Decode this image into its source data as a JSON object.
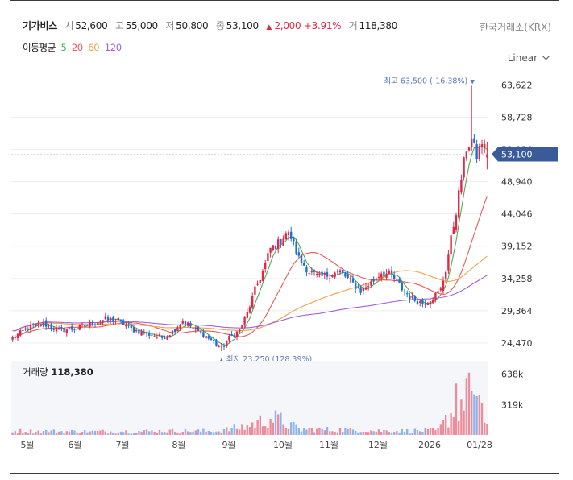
{
  "header": {
    "name": "기가비스",
    "open_label": "시",
    "open": "52,600",
    "high_label": "고",
    "high": "55,000",
    "low_label": "저",
    "low": "50,800",
    "close_label": "종",
    "close": "53,100",
    "change_arrow": "▲",
    "change": "2,000",
    "change_pct": "+3.91%",
    "volume_label": "거",
    "volume": "118,380"
  },
  "exchange": "한국거래소(KRX)",
  "ma_legend": {
    "title": "이동평균",
    "items": [
      {
        "label": "5",
        "color": "#4caf50"
      },
      {
        "label": "20",
        "color": "#e8595a"
      },
      {
        "label": "60",
        "color": "#f0a046"
      },
      {
        "label": "120",
        "color": "#a65ed6"
      }
    ]
  },
  "scale_button": "Linear",
  "colors": {
    "up": "#e0294a",
    "down": "#1e6fd9",
    "price_tag": "#3b5a9a",
    "annotation": "#5a7ab8"
  },
  "chart_data": {
    "type": "candlestick",
    "price_axis": {
      "ticks": [
        24470,
        29364,
        34258,
        39152,
        44046,
        48940,
        53834,
        58728,
        63622
      ],
      "labels": [
        "24,470",
        "29,364",
        "34,258",
        "39,152",
        "44,046",
        "48,940",
        "53,834",
        "58,728",
        "63,622"
      ],
      "ylim": [
        23000,
        65500
      ]
    },
    "time_axis": {
      "labels": [
        "5월",
        "6월",
        "7월",
        "8월",
        "9월",
        "10월",
        "11월",
        "12월",
        "2026",
        "01/28"
      ]
    },
    "current_price_tag": "53,100",
    "annotations": {
      "high": {
        "label": "최고 63,500 (-16.38%)",
        "value": 63500,
        "marker": "▼"
      },
      "low": {
        "label": "최저 23,250 (128.39%)",
        "value": 23250,
        "marker": "▲"
      }
    },
    "volume": {
      "title": "거래량",
      "value": "118,380",
      "ticks": [
        319000,
        638000
      ],
      "tick_labels": [
        "319k",
        "638k"
      ],
      "ylim": [
        0,
        780000
      ]
    },
    "price_knots": [
      [
        0,
        25200
      ],
      [
        6,
        26800
      ],
      [
        12,
        27400
      ],
      [
        18,
        26400
      ],
      [
        24,
        26700
      ],
      [
        30,
        27300
      ],
      [
        36,
        28100
      ],
      [
        41,
        27900
      ],
      [
        46,
        26600
      ],
      [
        52,
        25900
      ],
      [
        58,
        25300
      ],
      [
        62,
        26200
      ],
      [
        66,
        27900
      ],
      [
        70,
        26700
      ],
      [
        74,
        25800
      ],
      [
        78,
        24600
      ],
      [
        81,
        23700
      ],
      [
        84,
        25200
      ],
      [
        88,
        26400
      ],
      [
        91,
        29000
      ],
      [
        94,
        32500
      ],
      [
        97,
        35300
      ],
      [
        100,
        38800
      ],
      [
        103,
        39600
      ],
      [
        106,
        41200
      ],
      [
        108,
        40500
      ],
      [
        111,
        37300
      ],
      [
        115,
        35300
      ],
      [
        119,
        34400
      ],
      [
        123,
        34900
      ],
      [
        127,
        35300
      ],
      [
        131,
        33800
      ],
      [
        135,
        32400
      ],
      [
        139,
        33600
      ],
      [
        143,
        35200
      ],
      [
        147,
        34700
      ],
      [
        151,
        32700
      ],
      [
        155,
        31200
      ],
      [
        159,
        30500
      ],
      [
        163,
        31400
      ],
      [
        166,
        32500
      ],
      [
        168,
        35600
      ],
      [
        170,
        40200
      ],
      [
        172,
        44500
      ],
      [
        174,
        49500
      ],
      [
        176,
        54000
      ],
      [
        178,
        55200
      ],
      [
        180,
        52800
      ],
      [
        182,
        55000
      ],
      [
        184,
        53100
      ]
    ],
    "volume_knots": [
      [
        0,
        40000
      ],
      [
        30,
        35000
      ],
      [
        60,
        40000
      ],
      [
        80,
        40000
      ],
      [
        91,
        90000
      ],
      [
        100,
        180000
      ],
      [
        104,
        150000
      ],
      [
        111,
        60000
      ],
      [
        130,
        50000
      ],
      [
        150,
        40000
      ],
      [
        165,
        45000
      ],
      [
        172,
        300000
      ],
      [
        178,
        420000
      ],
      [
        184,
        118380
      ]
    ],
    "moving_averages": [
      {
        "name": "5",
        "period": 5,
        "color": "#4caf50"
      },
      {
        "name": "20",
        "period": 20,
        "color": "#e8595a"
      },
      {
        "name": "60",
        "period": 60,
        "color": "#f0a046"
      },
      {
        "name": "120",
        "period": 120,
        "color": "#a65ed6"
      }
    ]
  }
}
